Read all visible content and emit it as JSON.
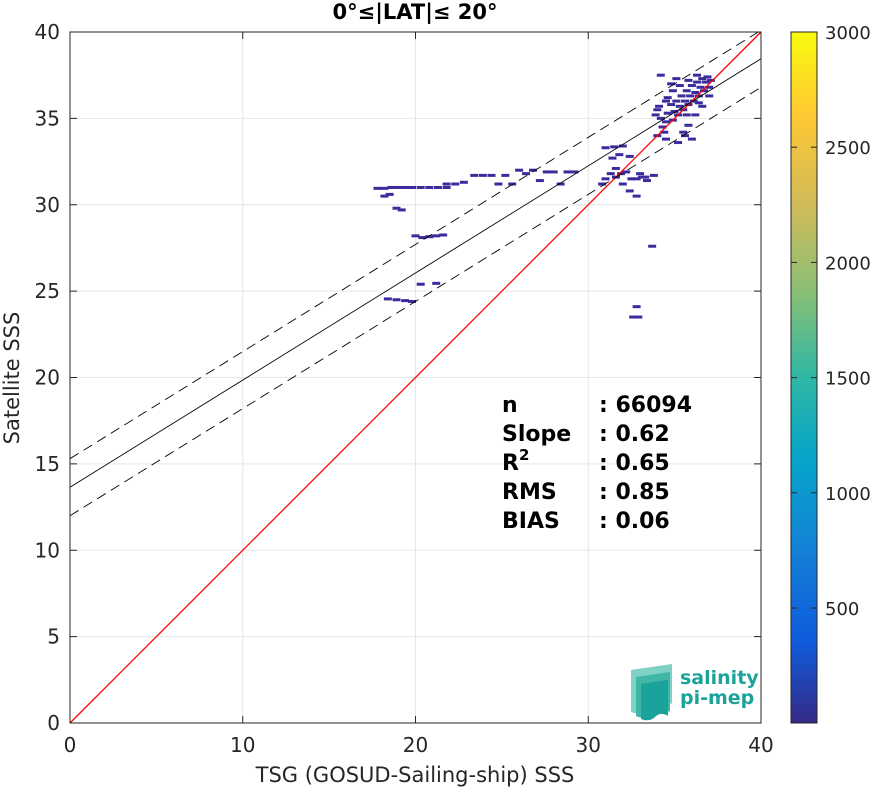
{
  "chart_data": {
    "type": "heatmap",
    "title": "0°≤|LAT|≤ 20°",
    "xlabel": "TSG (GOSUD-Sailing-ship) SSS",
    "ylabel": "Satellite SSS",
    "xlim": [
      0,
      40
    ],
    "ylim": [
      0,
      40
    ],
    "x_ticks": [
      "0",
      "10",
      "20",
      "30",
      "40"
    ],
    "y_ticks": [
      "0",
      "5",
      "10",
      "15",
      "20",
      "25",
      "30",
      "35",
      "40"
    ],
    "grid": true,
    "colorbar": {
      "min": 1,
      "max": 3000,
      "ticks": [
        "500",
        "1000",
        "1500",
        "2000",
        "2500",
        "3000"
      ],
      "colormap": "parula"
    },
    "lines": [
      {
        "name": "1:1",
        "slope": 1,
        "intercept": 0,
        "color": "#ff0000",
        "style": "solid"
      },
      {
        "name": "fit",
        "slope": 0.62,
        "intercept": 13.65,
        "color": "#000000",
        "style": "solid"
      },
      {
        "name": "fit+rms",
        "slope": 0.62,
        "intercept": 15.3,
        "color": "#000000",
        "style": "dashed"
      },
      {
        "name": "fit-rms",
        "slope": 0.62,
        "intercept": 12.0,
        "color": "#000000",
        "style": "dashed"
      }
    ],
    "stats": [
      {
        "label": "n",
        "sup": "",
        "value": ": 66094"
      },
      {
        "label": "Slope",
        "sup": "",
        "value": ": 0.62"
      },
      {
        "label": "R",
        "sup": "2",
        "value": ": 0.65"
      },
      {
        "label": "RMS",
        "sup": "",
        "value": ": 0.85"
      },
      {
        "label": "BIAS",
        "sup": "",
        "value": ": 0.06"
      }
    ],
    "density_cells": [
      [
        17.8,
        30.95
      ],
      [
        18.2,
        30.95
      ],
      [
        18.6,
        31.0
      ],
      [
        19.0,
        31.0
      ],
      [
        19.4,
        31.0
      ],
      [
        19.8,
        31.0
      ],
      [
        20.3,
        31.0
      ],
      [
        20.8,
        31.0
      ],
      [
        21.3,
        31.0
      ],
      [
        21.8,
        31.0
      ],
      [
        18.2,
        30.5
      ],
      [
        18.5,
        30.6
      ],
      [
        18.9,
        29.8
      ],
      [
        19.2,
        29.7
      ],
      [
        20.0,
        28.2
      ],
      [
        20.4,
        28.1
      ],
      [
        20.8,
        28.15
      ],
      [
        21.2,
        28.2
      ],
      [
        21.6,
        28.25
      ],
      [
        18.4,
        24.55
      ],
      [
        18.9,
        24.5
      ],
      [
        19.4,
        24.45
      ],
      [
        19.8,
        24.4
      ],
      [
        20.3,
        25.4
      ],
      [
        21.2,
        25.45
      ],
      [
        21.8,
        31.2
      ],
      [
        22.3,
        31.2
      ],
      [
        22.8,
        31.3
      ],
      [
        23.4,
        31.7
      ],
      [
        23.9,
        31.7
      ],
      [
        24.4,
        31.7
      ],
      [
        24.8,
        31.2
      ],
      [
        25.2,
        31.7
      ],
      [
        25.6,
        31.2
      ],
      [
        26.0,
        32.0
      ],
      [
        26.4,
        31.8
      ],
      [
        26.8,
        32.0
      ],
      [
        27.2,
        31.4
      ],
      [
        27.6,
        31.9
      ],
      [
        28.0,
        31.9
      ],
      [
        28.4,
        31.2
      ],
      [
        28.8,
        31.9
      ],
      [
        29.2,
        31.9
      ],
      [
        30.8,
        31.2
      ],
      [
        31.0,
        31.5
      ],
      [
        31.3,
        31.8
      ],
      [
        31.6,
        31.6
      ],
      [
        31.9,
        31.8
      ],
      [
        32.2,
        31.9
      ],
      [
        32.5,
        31.5
      ],
      [
        32.8,
        31.5
      ],
      [
        33.1,
        31.6
      ],
      [
        33.4,
        31.4
      ],
      [
        31.0,
        33.3
      ],
      [
        31.5,
        33.35
      ],
      [
        32.0,
        33.4
      ],
      [
        31.4,
        32.7
      ],
      [
        31.8,
        32.9
      ],
      [
        32.4,
        32.8
      ],
      [
        31.6,
        32.1
      ],
      [
        32.0,
        31.2
      ],
      [
        32.4,
        30.8
      ],
      [
        32.8,
        30.5
      ],
      [
        33.3,
        31.6
      ],
      [
        33.8,
        31.7
      ],
      [
        33.0,
        31.8
      ],
      [
        34.0,
        35.5
      ],
      [
        34.2,
        35.0
      ],
      [
        34.3,
        34.5
      ],
      [
        34.4,
        34.2
      ],
      [
        34.5,
        34.8
      ],
      [
        34.6,
        35.3
      ],
      [
        34.8,
        35.8
      ],
      [
        34.9,
        34.9
      ],
      [
        35.0,
        35.4
      ],
      [
        35.1,
        36.0
      ],
      [
        35.2,
        35.2
      ],
      [
        35.3,
        35.7
      ],
      [
        35.4,
        36.3
      ],
      [
        35.5,
        35.5
      ],
      [
        35.6,
        36.0
      ],
      [
        35.7,
        36.6
      ],
      [
        35.8,
        35.8
      ],
      [
        35.9,
        36.3
      ],
      [
        36.0,
        36.9
      ],
      [
        36.1,
        36.0
      ],
      [
        36.2,
        36.5
      ],
      [
        36.3,
        37.1
      ],
      [
        36.4,
        36.3
      ],
      [
        36.5,
        36.8
      ],
      [
        36.6,
        37.3
      ],
      [
        36.7,
        36.6
      ],
      [
        36.8,
        37.1
      ],
      [
        36.9,
        37.4
      ],
      [
        37.0,
        36.8
      ],
      [
        37.1,
        37.2
      ],
      [
        35.5,
        34.2
      ],
      [
        35.8,
        34.6
      ],
      [
        36.2,
        35.2
      ],
      [
        36.6,
        35.7
      ],
      [
        37.0,
        36.3
      ],
      [
        34.6,
        36.2
      ],
      [
        34.9,
        36.6
      ],
      [
        35.3,
        36.9
      ],
      [
        35.8,
        37.2
      ],
      [
        36.3,
        37.5
      ],
      [
        34.8,
        37.0
      ],
      [
        35.1,
        37.3
      ],
      [
        34.2,
        37.5
      ],
      [
        35.6,
        34.0
      ],
      [
        34.5,
        33.8
      ],
      [
        34.0,
        34.0
      ],
      [
        33.9,
        35.2
      ],
      [
        36.0,
        33.8
      ],
      [
        35.2,
        33.6
      ],
      [
        34.5,
        36.0
      ],
      [
        34.1,
        35.7
      ],
      [
        35.7,
        35.2
      ],
      [
        36.4,
        35.9
      ],
      [
        33.7,
        27.6
      ],
      [
        32.6,
        23.5
      ],
      [
        32.9,
        23.5
      ],
      [
        32.8,
        24.1
      ]
    ]
  },
  "logo": {
    "line1": "salinity",
    "line2": "pi-mep"
  }
}
